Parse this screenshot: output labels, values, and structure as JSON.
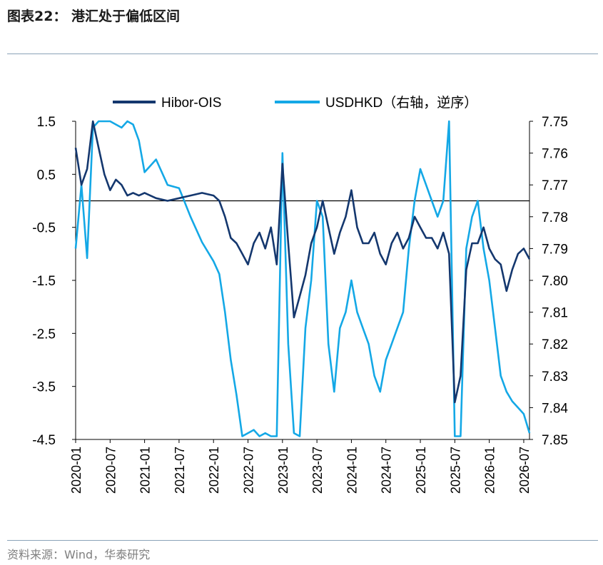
{
  "header": {
    "title": "图表22： 港汇处于偏低区间"
  },
  "footer": {
    "source": "资料来源：Wind，华泰研究"
  },
  "colors": {
    "hibor": "#14376e",
    "usdhkd": "#14a8e6",
    "axis": "#000000"
  },
  "chart_data": {
    "type": "line",
    "legend_position": "top",
    "left_axis": {
      "ylim": [
        -4.5,
        1.5
      ],
      "ticks": [
        "1.5",
        "0.5",
        "-0.5",
        "-1.5",
        "-2.5",
        "-3.5",
        "-4.5"
      ]
    },
    "right_axis": {
      "ylim": [
        7.75,
        7.85
      ],
      "inverted": true,
      "ticks": [
        "7.75",
        "7.76",
        "7.77",
        "7.78",
        "7.79",
        "7.80",
        "7.81",
        "7.82",
        "7.83",
        "7.84",
        "7.85"
      ]
    },
    "x_ticks": [
      "2020-01",
      "2020-07",
      "2021-01",
      "2021-07",
      "2022-01",
      "2022-07",
      "2023-01",
      "2023-07",
      "2024-01",
      "2024-07",
      "2025-01",
      "2025-07",
      "2026-01",
      "2026-07"
    ],
    "reference_line": 0,
    "series": [
      {
        "name": "Hibor-OIS",
        "axis": "left",
        "x": [
          "2020-01",
          "2020-02",
          "2020-03",
          "2020-04",
          "2020-05",
          "2020-06",
          "2020-07",
          "2020-08",
          "2020-09",
          "2020-10",
          "2020-11",
          "2020-12",
          "2021-01",
          "2021-03",
          "2021-05",
          "2021-07",
          "2021-09",
          "2021-11",
          "2022-01",
          "2022-02",
          "2022-03",
          "2022-04",
          "2022-05",
          "2022-06",
          "2022-07",
          "2022-08",
          "2022-09",
          "2022-10",
          "2022-11",
          "2022-12",
          "2023-01",
          "2023-02",
          "2023-03",
          "2023-04",
          "2023-05",
          "2023-06",
          "2023-07",
          "2023-08",
          "2023-09",
          "2023-10",
          "2023-11",
          "2023-12",
          "2024-01",
          "2024-02",
          "2024-03",
          "2024-04",
          "2024-05",
          "2024-06",
          "2024-07",
          "2024-08",
          "2024-09",
          "2024-10",
          "2024-11",
          "2024-12",
          "2025-01",
          "2025-02",
          "2025-03",
          "2025-04",
          "2025-05",
          "2025-06",
          "2025-07",
          "2025-08",
          "2025-09",
          "2025-10",
          "2025-11",
          "2025-12",
          "2026-01",
          "2026-02",
          "2026-03",
          "2026-04",
          "2026-05",
          "2026-06",
          "2026-07",
          "2026-08"
        ],
        "values": [
          1.0,
          0.3,
          0.6,
          1.7,
          1.0,
          0.5,
          0.2,
          0.4,
          0.3,
          0.1,
          0.15,
          0.1,
          0.15,
          0.05,
          0.0,
          0.05,
          0.1,
          0.15,
          0.1,
          0.0,
          -0.3,
          -0.7,
          -0.8,
          -1.0,
          -1.2,
          -0.8,
          -0.6,
          -0.9,
          -0.5,
          -1.2,
          0.7,
          -0.8,
          -2.2,
          -1.8,
          -1.4,
          -0.8,
          -0.5,
          0.0,
          -0.5,
          -1.0,
          -0.6,
          -0.3,
          0.2,
          -0.5,
          -0.8,
          -0.8,
          -0.6,
          -1.0,
          -1.2,
          -0.8,
          -0.6,
          -0.9,
          -0.7,
          -0.3,
          -0.5,
          -0.7,
          -0.7,
          -0.9,
          -0.6,
          -1.0,
          -3.8,
          -3.3,
          -1.3,
          -0.8,
          -0.8,
          -0.5,
          -0.9,
          -1.1,
          -1.2,
          -1.7,
          -1.3,
          -1.0,
          -0.9,
          -1.1
        ]
      },
      {
        "name": "USDHKD（右轴，逆序）",
        "axis": "right",
        "x": [
          "2020-01",
          "2020-02",
          "2020-03",
          "2020-04",
          "2020-05",
          "2020-06",
          "2020-07",
          "2020-08",
          "2020-09",
          "2020-10",
          "2020-11",
          "2020-12",
          "2021-01",
          "2021-03",
          "2021-05",
          "2021-07",
          "2021-09",
          "2021-11",
          "2022-01",
          "2022-02",
          "2022-03",
          "2022-04",
          "2022-05",
          "2022-06",
          "2022-07",
          "2022-08",
          "2022-09",
          "2022-10",
          "2022-11",
          "2022-12",
          "2023-01",
          "2023-02",
          "2023-03",
          "2023-04",
          "2023-05",
          "2023-06",
          "2023-07",
          "2023-08",
          "2023-09",
          "2023-10",
          "2023-11",
          "2023-12",
          "2024-01",
          "2024-02",
          "2024-03",
          "2024-04",
          "2024-05",
          "2024-06",
          "2024-07",
          "2024-08",
          "2024-09",
          "2024-10",
          "2024-11",
          "2024-12",
          "2025-01",
          "2025-02",
          "2025-03",
          "2025-04",
          "2025-05",
          "2025-06",
          "2025-07",
          "2025-08",
          "2025-09",
          "2025-10",
          "2025-11",
          "2025-12",
          "2026-01",
          "2026-02",
          "2026-03",
          "2026-04",
          "2026-05",
          "2026-06",
          "2026-07",
          "2026-08"
        ],
        "values": [
          7.79,
          7.77,
          7.793,
          7.752,
          7.75,
          7.75,
          7.75,
          7.751,
          7.752,
          7.75,
          7.751,
          7.756,
          7.766,
          7.762,
          7.77,
          7.771,
          7.78,
          7.788,
          7.794,
          7.798,
          7.81,
          7.825,
          7.836,
          7.849,
          7.848,
          7.847,
          7.849,
          7.848,
          7.849,
          7.849,
          7.76,
          7.82,
          7.848,
          7.849,
          7.815,
          7.8,
          7.775,
          7.78,
          7.82,
          7.835,
          7.815,
          7.81,
          7.8,
          7.81,
          7.815,
          7.82,
          7.83,
          7.835,
          7.825,
          7.82,
          7.815,
          7.81,
          7.79,
          7.775,
          7.765,
          7.77,
          7.775,
          7.78,
          7.775,
          7.75,
          7.849,
          7.849,
          7.79,
          7.78,
          7.775,
          7.79,
          7.8,
          7.815,
          7.83,
          7.835,
          7.838,
          7.84,
          7.842,
          7.848
        ]
      }
    ]
  }
}
